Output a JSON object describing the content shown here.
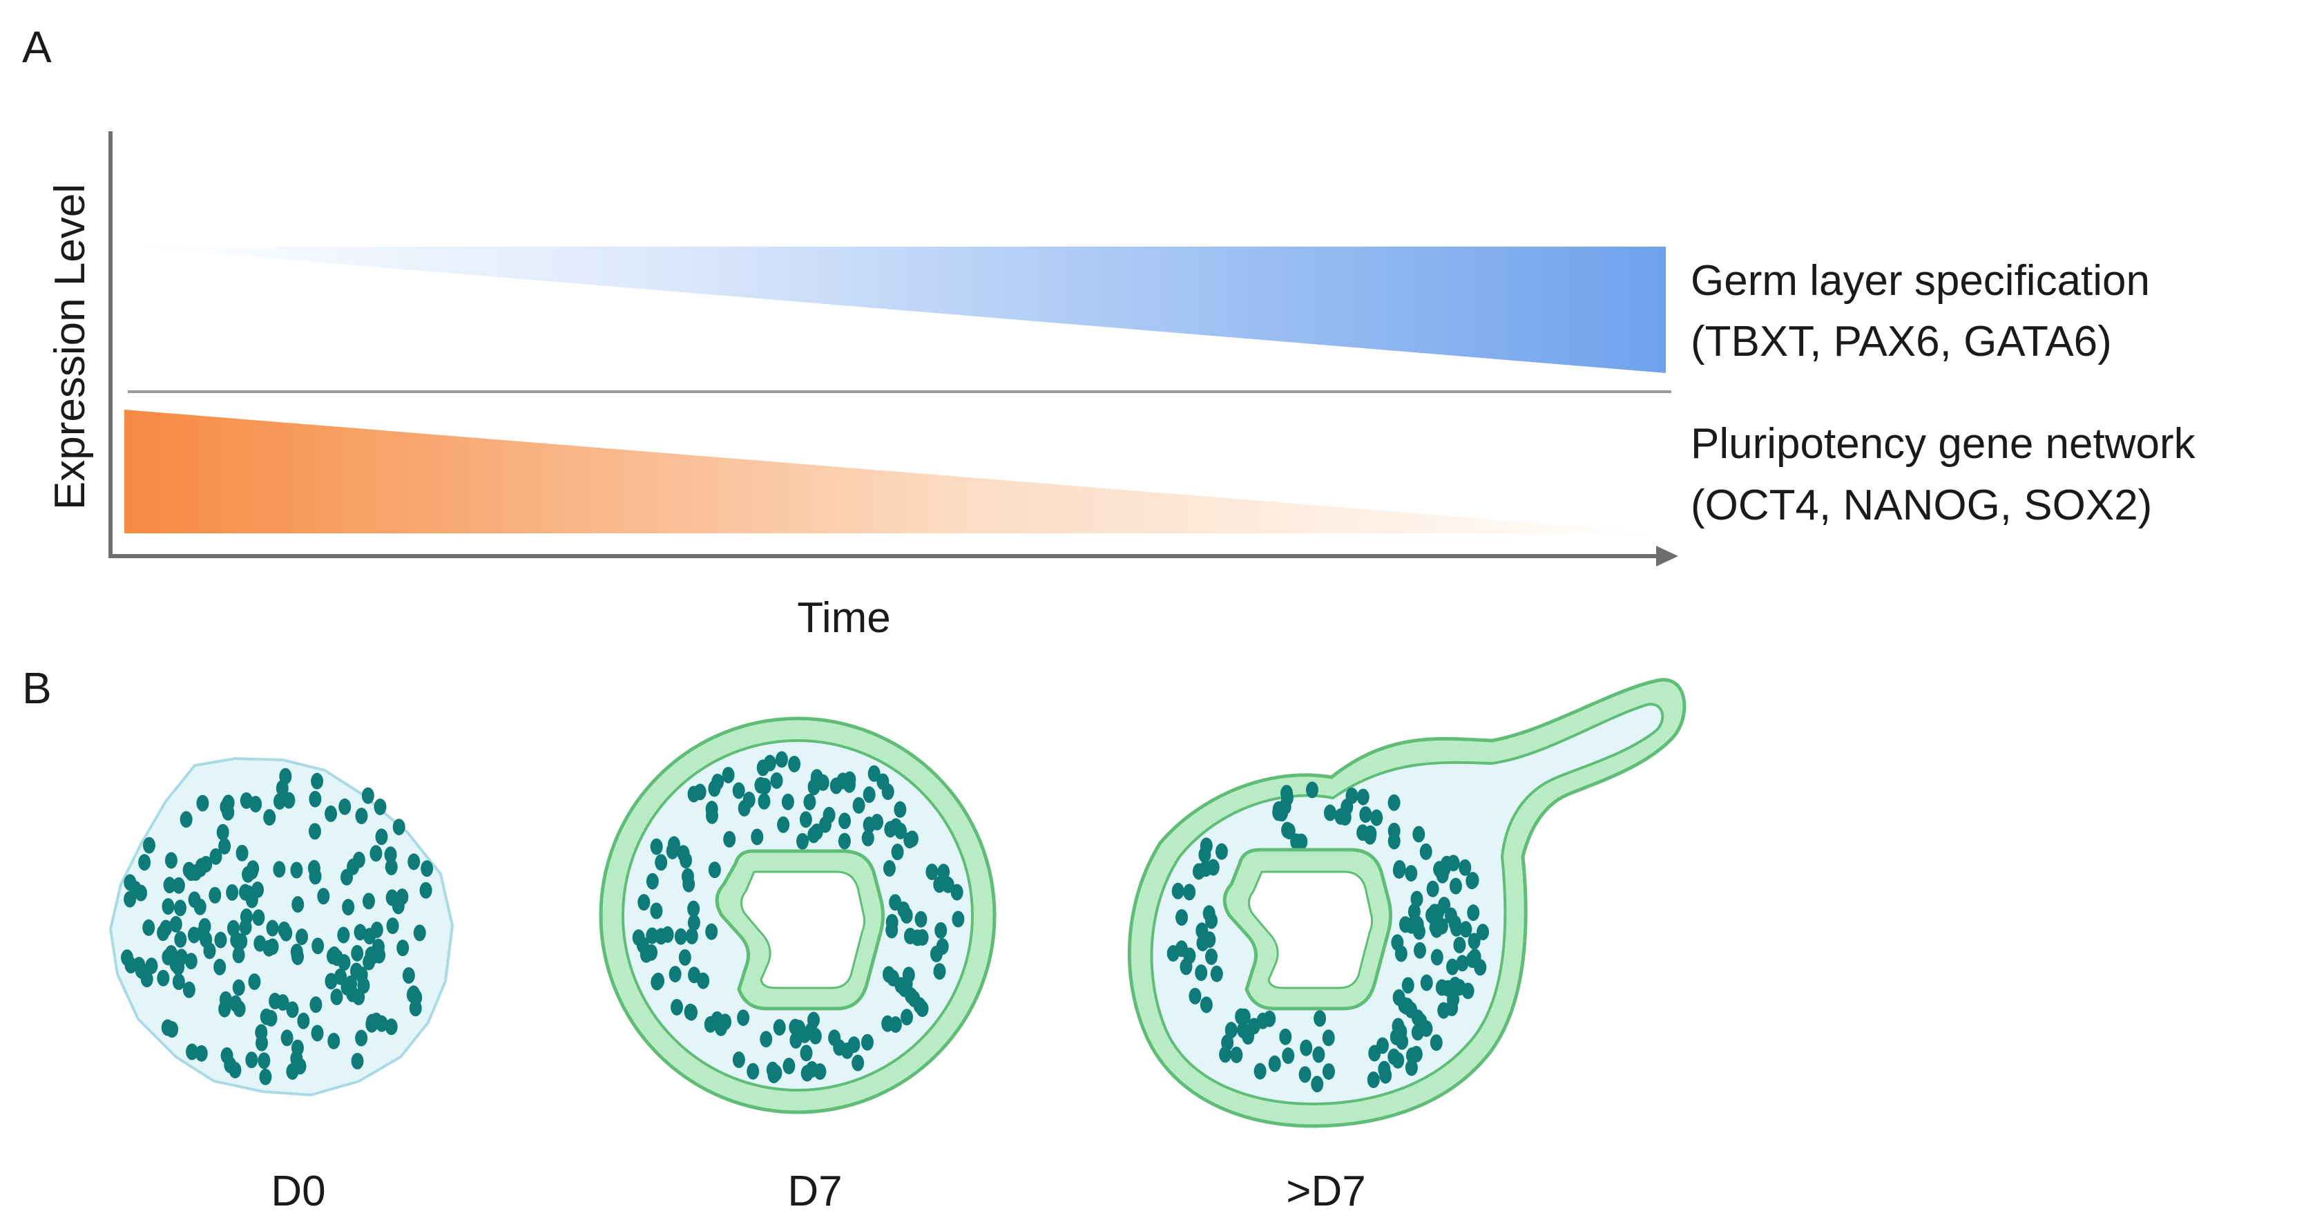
{
  "panels": {
    "a": {
      "letter": "A",
      "y_axis_label": "Expression Level",
      "x_axis_label": "Time",
      "bands": [
        {
          "line1": "Germ layer specification",
          "line2": "(TBXT, PAX6, GATA6)",
          "trend": "increasing",
          "color": "#6fa2ec"
        },
        {
          "line1": "Pluripotency gene network",
          "line2": "(OCT4, NANOG, SOX2)",
          "trend": "decreasing",
          "color": "#f58a42"
        }
      ]
    },
    "b": {
      "letter": "B",
      "stages": [
        {
          "label": "D0",
          "form": "cell-cluster"
        },
        {
          "label": "D7",
          "form": "ring-with-lumen"
        },
        {
          "label": ">D7",
          "form": "ring-with-lumen-and-bud"
        }
      ]
    }
  },
  "colors": {
    "axis": "#6e6e6e",
    "divider": "#9a9a9a",
    "nucleus": "#0e7b78",
    "cell_fill": "#e4f5f9",
    "cell_outline": "#aadbe5",
    "epithelium_fill": "#b9ecc4",
    "epithelium_outline": "#5fbd78"
  }
}
